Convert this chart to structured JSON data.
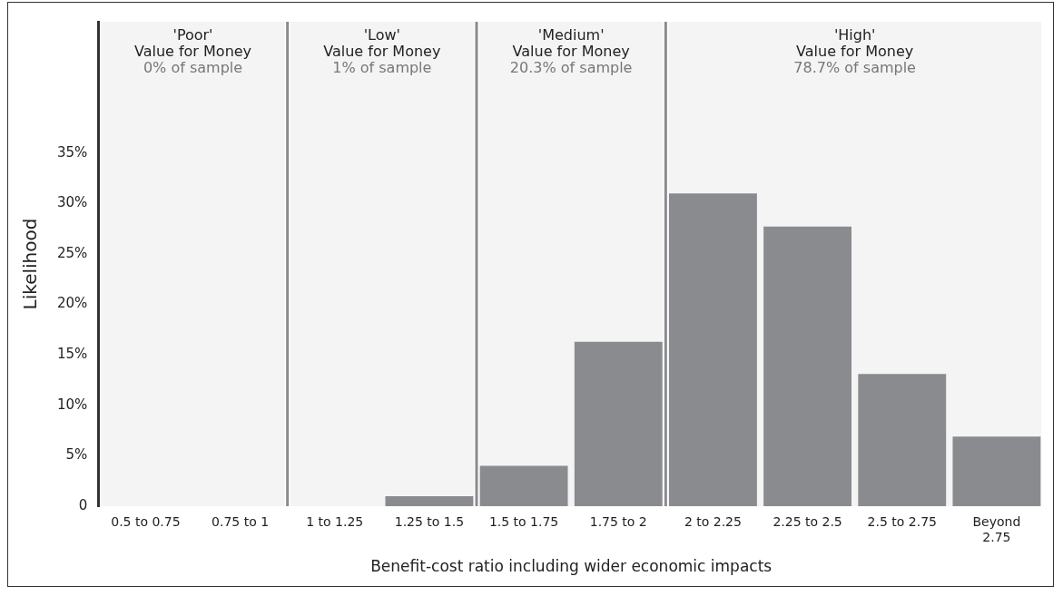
{
  "chart_data": {
    "type": "bar",
    "categories": [
      "0.5 to 0.75",
      "0.75 to 1",
      "1 to 1.25",
      "1.25 to 1.5",
      "1.5 to 1.75",
      "1.75 to 2",
      "2 to 2.25",
      "2.25 to 2.5",
      "2.5 to 2.75",
      "Beyond 2.75"
    ],
    "values": [
      0,
      0,
      0,
      1,
      4.0,
      16.3,
      31.0,
      27.7,
      13.1,
      6.9
    ],
    "color": "#8a8b8f",
    "xlabel": "Benefit-cost ratio including wider economic impacts",
    "ylabel": "Likelihood",
    "ylim": [
      0,
      48
    ],
    "yticks": [
      {
        "value": 0,
        "label": "0"
      },
      {
        "value": 5,
        "label": "5%"
      },
      {
        "value": 10,
        "label": "10%"
      },
      {
        "value": 15,
        "label": "15%"
      },
      {
        "value": 20,
        "label": "20%"
      },
      {
        "value": 25,
        "label": "25%"
      },
      {
        "value": 30,
        "label": "30%"
      },
      {
        "value": 35,
        "label": "35%"
      }
    ],
    "bands": [
      {
        "axis": "x",
        "from": "0.5 to 0.75",
        "to": "0.75 to 1",
        "label": "'Poor'\nValue for Money\n0% of sample",
        "color": "#f4f4f5"
      },
      {
        "axis": "x",
        "from": "1 to 1.25",
        "to": "1.25 to 1.5",
        "label": "'Low'\nValue for Money\n1% of sample",
        "color": "#f4f4f5"
      },
      {
        "axis": "x",
        "from": "1.5 to 1.75",
        "to": "1.75 to 2",
        "label": "'Medium'\nValue for Money\n20.3% of sample",
        "color": "#f4f4f5"
      },
      {
        "axis": "x",
        "from": "2 to 2.25",
        "to": "Beyond 2.75",
        "label": "'High'\nValue for Money\n78.7% of sample",
        "color": "#f4f4f5"
      }
    ],
    "grid": false,
    "legend": false
  }
}
